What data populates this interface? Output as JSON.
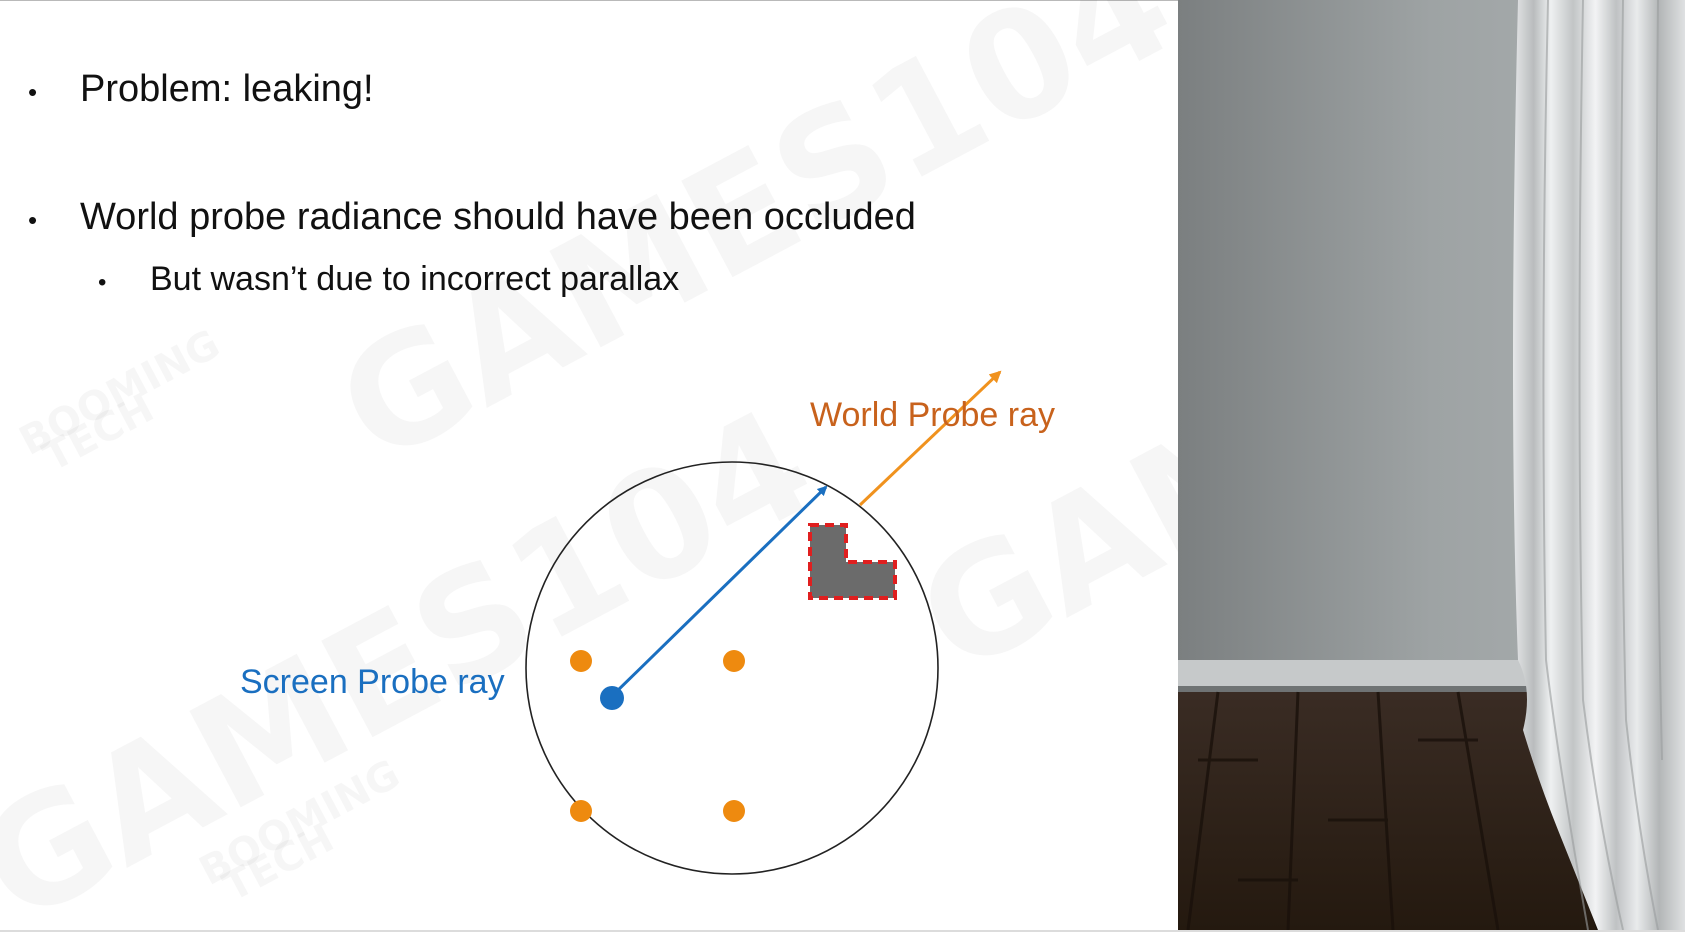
{
  "bullets": [
    {
      "level": 1,
      "text": "Problem: leaking!"
    },
    {
      "level": 1,
      "text": "World probe radiance should have been occluded"
    },
    {
      "level": 2,
      "text": "But wasn’t due to incorrect parallax"
    }
  ],
  "bullet_glyph": "•",
  "diagram": {
    "screen_ray_label": "Screen Probe ray",
    "world_ray_label": "World Probe ray",
    "colors": {
      "screen": "#1a6fc0",
      "world": "#c8621c",
      "world_arrow": "#f0921e",
      "probe_dot": "#ee8a0f",
      "occluder": "#6b6b6b",
      "occluder_outline": "#e01f1f"
    }
  },
  "watermark": {
    "brand": "GAMES104",
    "sub_top": "BOOMING",
    "sub_bottom": "TECH"
  }
}
